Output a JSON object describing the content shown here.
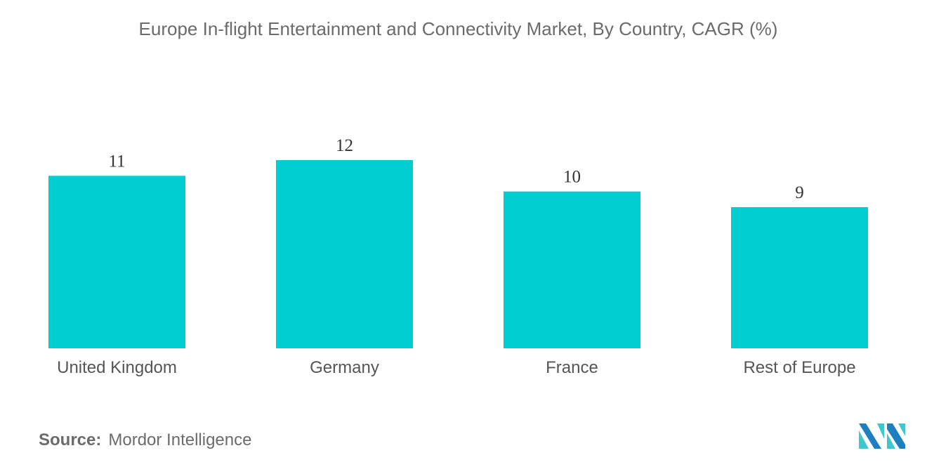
{
  "chart_data": {
    "type": "bar",
    "title": "Europe In-flight Entertainment and Connectivity Market, By Country, CAGR (%)",
    "categories": [
      "United Kingdom",
      "Germany",
      "France",
      "Rest of Europe"
    ],
    "values": [
      11,
      12,
      10,
      9
    ],
    "data_labels": [
      "11",
      "12",
      "10",
      "9"
    ],
    "xlabel": "",
    "ylabel": "",
    "ylim": [
      0,
      12
    ],
    "grid": false,
    "bar_color": "#00CED1"
  },
  "source": {
    "label": "Source:",
    "value": "Mordor Intelligence"
  },
  "logo": {
    "text": "Mordor Intelligence logo",
    "colors": [
      "#1E7FC0",
      "#3FC7D0"
    ]
  }
}
